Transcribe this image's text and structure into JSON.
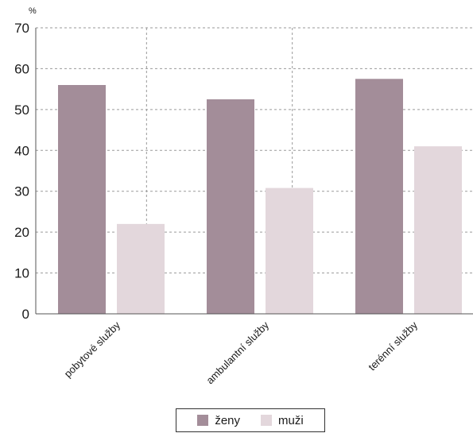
{
  "chart_data": {
    "type": "bar",
    "unit_label": "%",
    "categories": [
      "pobytové služby",
      "ambulantní služby",
      "terénní služby"
    ],
    "series": [
      {
        "name": "ženy",
        "values": [
          56,
          52.5,
          57.5
        ],
        "color": "#a38d99"
      },
      {
        "name": "muži",
        "values": [
          22,
          30.8,
          41
        ],
        "color": "#e3d7dc"
      }
    ],
    "ylim": [
      0,
      70
    ],
    "yticks": [
      0,
      10,
      20,
      30,
      40,
      50,
      60,
      70
    ],
    "grid": "dashed",
    "legend_position": "bottom-center"
  }
}
